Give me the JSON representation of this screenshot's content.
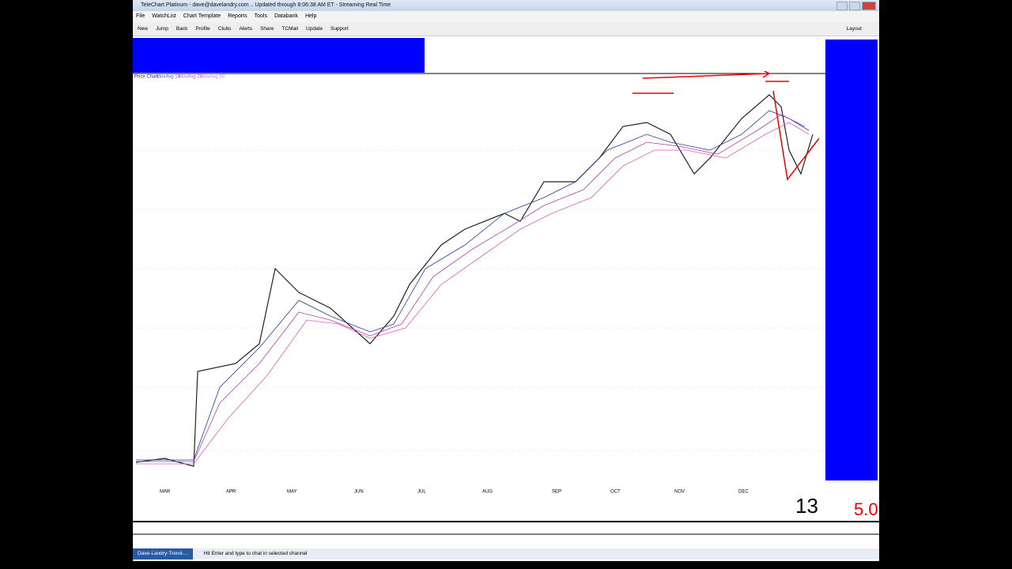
{
  "window": {
    "title": "TeleChart Platinum - dave@davelandry.com .. Updated through 8:06:38 AM ET - Streaming Real Time"
  },
  "menu": [
    "File",
    "WatchList",
    "Chart Template",
    "Reports",
    "Tools",
    "Databank",
    "Help"
  ],
  "toolbar": [
    "New",
    "Jump",
    "Back",
    "Profile",
    "Clubs",
    "Alerts",
    "Share",
    "TCMail",
    "Update",
    "Support"
  ],
  "layout_button": "Layout",
  "chart": {
    "legend": [
      "Price Chart",
      "MovAvg 10",
      "MovAvg 20",
      "MovAvg 30"
    ],
    "months": [
      "MAR",
      "APR",
      "MAY",
      "JUN",
      "JUL",
      "AUG",
      "SEP",
      "OCT",
      "NOV",
      "DEC"
    ],
    "period": "13",
    "version": "5.0"
  },
  "status": {
    "channel": "Dave-Landry-Trend-...",
    "hint": "Hit Enter and type to chat in selected channel"
  }
}
